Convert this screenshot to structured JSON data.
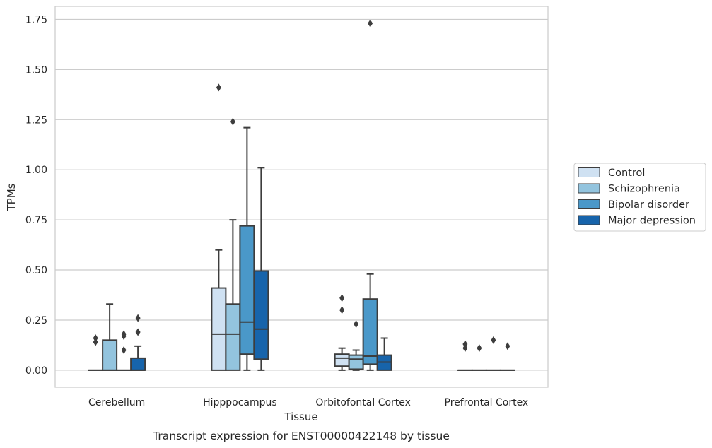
{
  "chart_data": {
    "type": "box",
    "xlabel": "Tissue",
    "ylabel": "TPMs",
    "caption": "Transcript expression for ENST00000422148 by tissue",
    "ylim": [
      -0.085,
      1.815
    ],
    "yticks": [
      "0.00",
      "0.25",
      "0.50",
      "0.75",
      "1.00",
      "1.25",
      "1.50",
      "1.75"
    ],
    "grid": "horizontal",
    "legend_position": "right, outside plot",
    "categories": [
      "Cerebellum",
      "Hipppocampus",
      "Orbitofontal Cortex",
      "Prefrontal Cortex"
    ],
    "series": [
      {
        "name": "Control",
        "color": "#cfe1f2",
        "boxes": [
          {
            "whislo": 0,
            "q1": 0,
            "med": 0,
            "q3": 0,
            "whishi": 0,
            "fliers": [
              0.14,
              0.16
            ]
          },
          {
            "whislo": 0,
            "q1": 0,
            "med": 0.18,
            "q3": 0.41,
            "whishi": 0.6,
            "fliers": [
              1.41
            ]
          },
          {
            "whislo": 0,
            "q1": 0.02,
            "med": 0.06,
            "q3": 0.08,
            "whishi": 0.11,
            "fliers": [
              0.3,
              0.36
            ]
          },
          {
            "whislo": 0,
            "q1": 0,
            "med": 0,
            "q3": 0,
            "whishi": 0,
            "fliers": [
              0.11,
              0.13
            ]
          }
        ]
      },
      {
        "name": "Schizophrenia",
        "color": "#93c4de",
        "boxes": [
          {
            "whislo": 0,
            "q1": 0,
            "med": 0,
            "q3": 0.15,
            "whishi": 0.33,
            "fliers": []
          },
          {
            "whislo": 0,
            "q1": 0,
            "med": 0.18,
            "q3": 0.33,
            "whishi": 0.75,
            "fliers": [
              1.24
            ]
          },
          {
            "whislo": 0,
            "q1": 0.005,
            "med": 0.055,
            "q3": 0.075,
            "whishi": 0.1,
            "fliers": [
              0.23
            ]
          },
          {
            "whislo": 0,
            "q1": 0,
            "med": 0,
            "q3": 0,
            "whishi": 0,
            "fliers": [
              0.11
            ]
          }
        ]
      },
      {
        "name": "Bipolar disorder",
        "color": "#4a98c9",
        "boxes": [
          {
            "whislo": 0,
            "q1": 0,
            "med": 0,
            "q3": 0,
            "whishi": 0,
            "fliers": [
              0.1,
              0.17,
              0.18
            ]
          },
          {
            "whislo": 0,
            "q1": 0.08,
            "med": 0.24,
            "q3": 0.72,
            "whishi": 1.21,
            "fliers": []
          },
          {
            "whislo": 0,
            "q1": 0.03,
            "med": 0.07,
            "q3": 0.355,
            "whishi": 0.48,
            "fliers": [
              1.73
            ]
          },
          {
            "whislo": 0,
            "q1": 0,
            "med": 0,
            "q3": 0,
            "whishi": 0,
            "fliers": [
              0.15
            ]
          }
        ]
      },
      {
        "name": "Major depression",
        "color": "#1764ab",
        "boxes": [
          {
            "whislo": 0,
            "q1": 0,
            "med": 0,
            "q3": 0.06,
            "whishi": 0.12,
            "fliers": [
              0.19,
              0.26
            ]
          },
          {
            "whislo": 0,
            "q1": 0.055,
            "med": 0.205,
            "q3": 0.495,
            "whishi": 1.01,
            "fliers": []
          },
          {
            "whislo": 0,
            "q1": 0,
            "med": 0.04,
            "q3": 0.075,
            "whishi": 0.16,
            "fliers": []
          },
          {
            "whislo": 0,
            "q1": 0,
            "med": 0,
            "q3": 0,
            "whishi": 0,
            "fliers": [
              0.12
            ]
          }
        ]
      }
    ]
  }
}
